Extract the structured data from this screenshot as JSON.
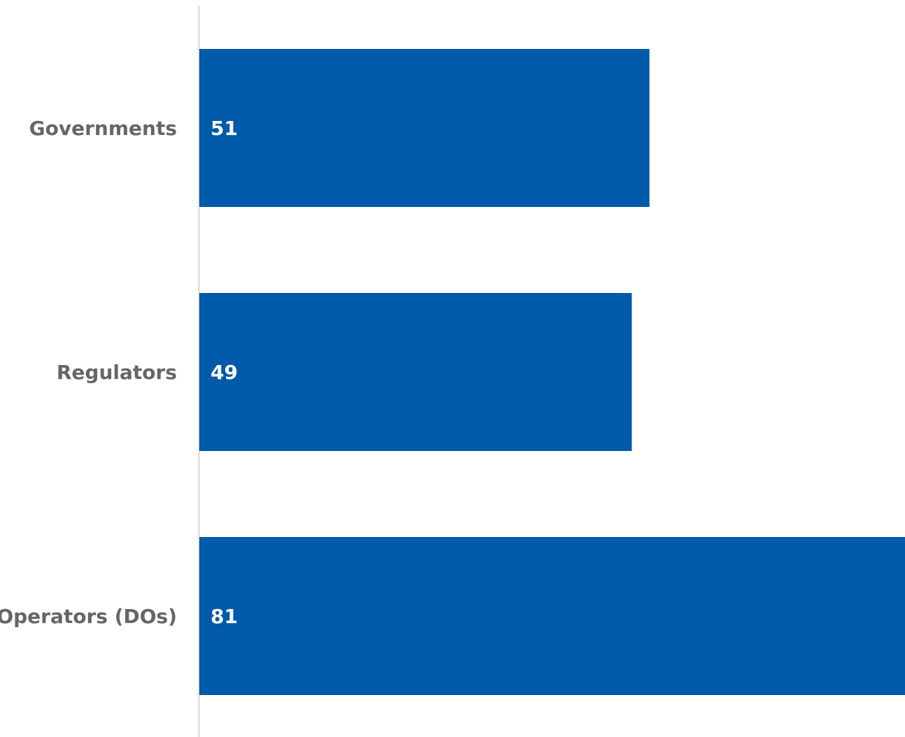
{
  "chart_data": {
    "type": "bar",
    "orientation": "horizontal",
    "categories": [
      "Governments",
      "Regulators",
      "Operators (DOs)"
    ],
    "values": [
      51,
      49,
      81
    ],
    "data_labels": [
      "51",
      "49",
      "81"
    ],
    "title": "",
    "xlabel": "",
    "ylabel": "",
    "xlim": [
      0,
      80
    ],
    "grid": false,
    "legend": "none",
    "colors": {
      "bar": "#0059A9",
      "category_text": "#666666",
      "value_text": "#FFFFFF",
      "axis_line": "#D9D9D9"
    }
  }
}
